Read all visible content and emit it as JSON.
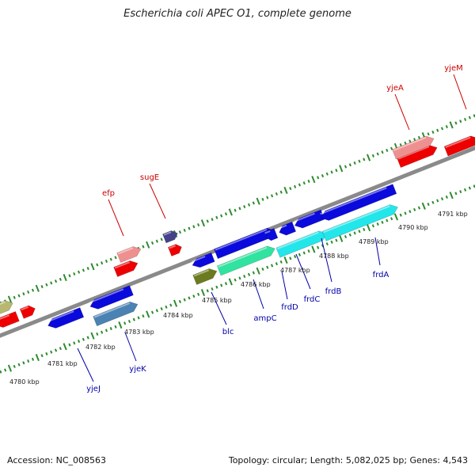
{
  "title": "Escherichia coli APEC O1, complete genome",
  "footer": {
    "accession": "Accession: NC_008563",
    "summary": "Topology: circular; Length: 5,082,025 bp; Genes: 4,543"
  },
  "colors": {
    "backbone": "#8a8a8a",
    "tick": "#2e8b2e",
    "forward_label": "#cc0000",
    "reverse_label": "#0000aa"
  },
  "scale_labels": [
    "4780 kbp",
    "4781 kbp",
    "4782 kbp",
    "4783 kbp",
    "4784 kbp",
    "4785 kbp",
    "4786 kbp",
    "4787 kbp",
    "4788 kbp",
    "4789 kbp",
    "4790 kbp",
    "4791 kbp"
  ],
  "forward_genes": [
    {
      "label": "efp",
      "color": "#ef9090"
    },
    {
      "label": "sugE",
      "color": "#46428a"
    },
    {
      "label": "yjeA",
      "color": "#ef9090"
    },
    {
      "label": "yjeM",
      "color": "#ee0000"
    }
  ],
  "reverse_genes": [
    {
      "label": "yjeJ",
      "color": "#0a0adc"
    },
    {
      "label": "yjeK",
      "color": "#4a82b4"
    },
    {
      "label": "blc",
      "color": "#6b7b1f"
    },
    {
      "label": "ampC",
      "color": "#30e3a0"
    },
    {
      "label": "frdD",
      "color": "#0a0adc"
    },
    {
      "label": "frdC",
      "color": "#0a0adc"
    },
    {
      "label": "frdB",
      "color": "#0a0adc"
    },
    {
      "label": "frdA",
      "color": "#22e6ea"
    }
  ]
}
